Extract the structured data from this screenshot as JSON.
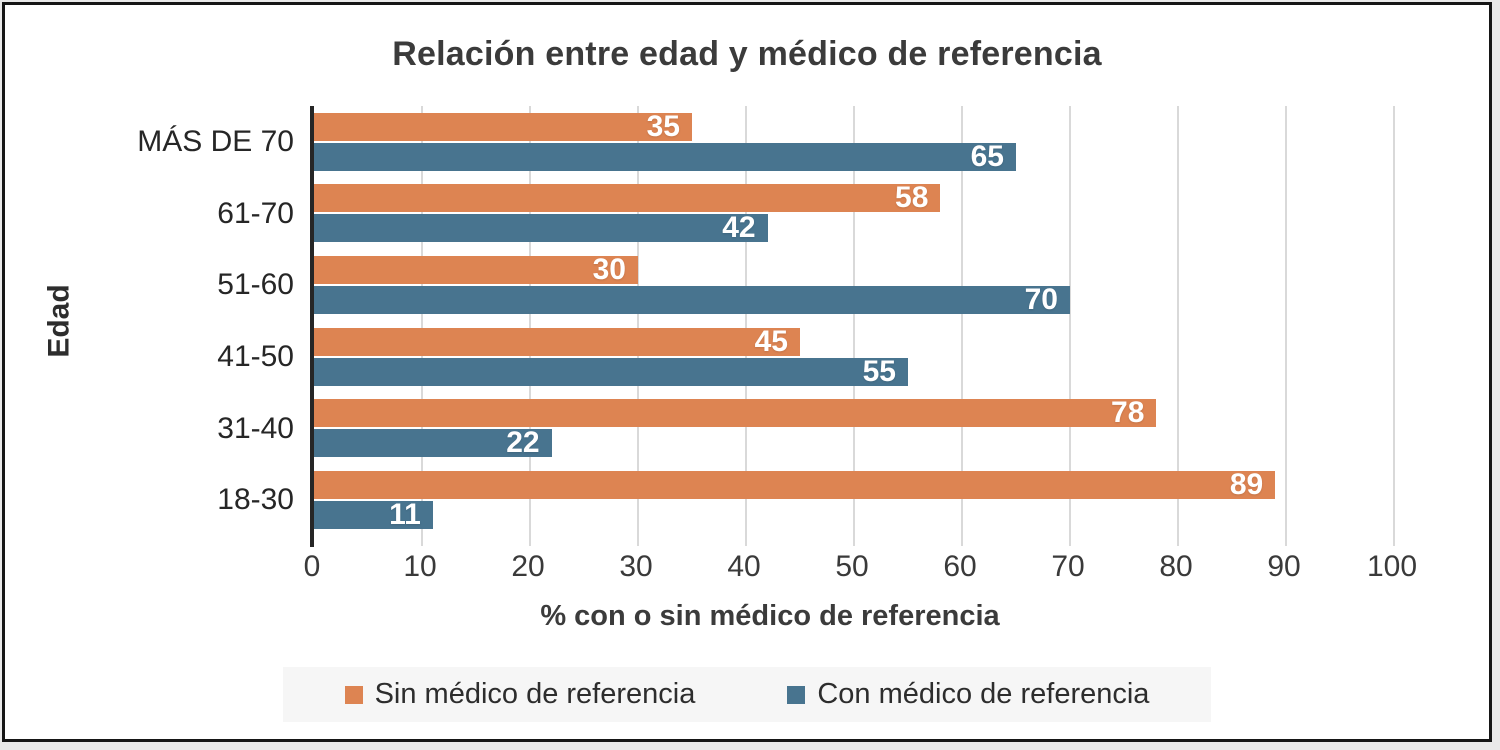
{
  "colors": {
    "sin_medico": "#DD8452",
    "con_medico": "#48748F",
    "axis_line": "#262626",
    "gridline": "#D9D9D9",
    "legend_bg": "#F6F6F6",
    "title_text": "#3B3B3B",
    "value_label_text": "#FFFFFF"
  },
  "chart_data": {
    "type": "bar",
    "orientation": "horizontal",
    "title": "Relación entre edad y médico de referencia",
    "xlabel": "% con o sin médico de referencia",
    "ylabel": "Edad",
    "categories": [
      "MÁS DE 70",
      "61-70",
      "51-60",
      "41-50",
      "31-40",
      "18-30"
    ],
    "series": [
      {
        "key": "sin-medico-de-referencia",
        "name": "Sin médico de referencia",
        "color": "#DD8452",
        "values": [
          35,
          58,
          30,
          45,
          78,
          89
        ]
      },
      {
        "key": "con-medico-de-referencia",
        "name": "Con médico de referencia",
        "color": "#48748F",
        "values": [
          65,
          42,
          70,
          55,
          22,
          11
        ]
      }
    ],
    "xlim": [
      0,
      100
    ],
    "x_ticks": [
      0,
      10,
      20,
      30,
      40,
      50,
      60,
      70,
      80,
      90,
      100
    ],
    "grid": "vertical",
    "legend_position": "bottom",
    "value_labels": "inside-end"
  }
}
